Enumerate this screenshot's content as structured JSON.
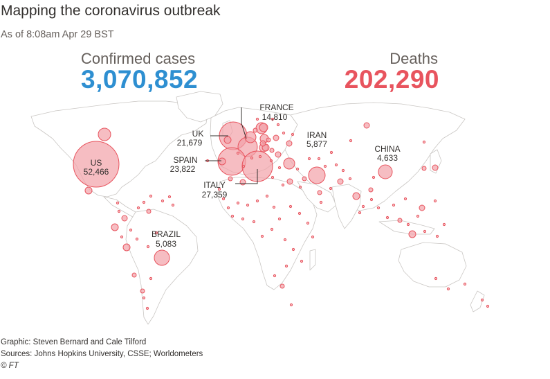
{
  "title": "Mapping the coronavirus outbreak",
  "subtitle": "As of 8:08am Apr 29 BST",
  "confirmed": {
    "label": "Confirmed cases",
    "value": "3,070,852"
  },
  "deaths": {
    "label": "Deaths",
    "value": "202,290"
  },
  "colors": {
    "cases": "#2e8fd1",
    "deaths": "#e8545e",
    "bubble_fill": "#f2a1a8",
    "bubble_stroke": "#e8545e",
    "land": "#ffffff",
    "border": "#c9c6c3"
  },
  "countries": [
    {
      "name": "US",
      "deaths": "52,466"
    },
    {
      "name": "UK",
      "deaths": "21,679"
    },
    {
      "name": "FRANCE",
      "deaths": "14,810"
    },
    {
      "name": "SPAIN",
      "deaths": "23,822"
    },
    {
      "name": "ITALY",
      "deaths": "27,359"
    },
    {
      "name": "IRAN",
      "deaths": "5,877"
    },
    {
      "name": "CHINA",
      "deaths": "4,633"
    },
    {
      "name": "BRAZIL",
      "deaths": "5,083"
    }
  ],
  "credits": {
    "graphic": "Graphic: Steven Bernard and Cale Tilford",
    "sources": "Sources: Johns Hopkins University, CSSE; Worldometers",
    "ft": "© FT"
  }
}
